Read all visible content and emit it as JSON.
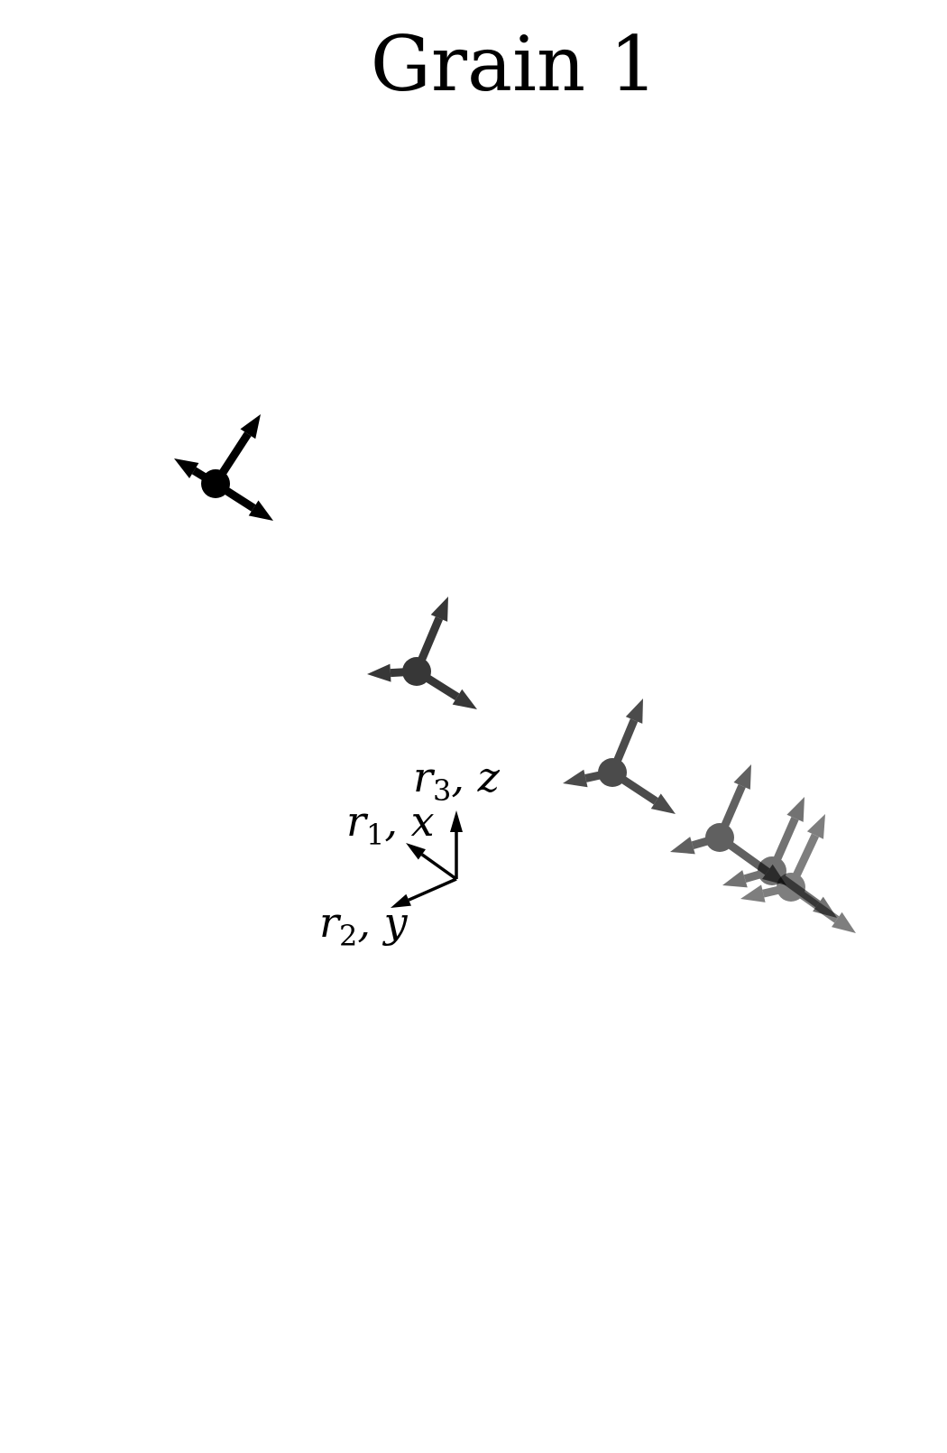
{
  "title": "Grain 1",
  "triad_color": "#000000",
  "triads": [
    {
      "id": "frame-1",
      "opacity": 1.0
    },
    {
      "id": "frame-2",
      "opacity": 0.78
    },
    {
      "id": "frame-3",
      "opacity": 0.7
    },
    {
      "id": "frame-4",
      "opacity": 0.62
    },
    {
      "id": "frame-5",
      "opacity": 0.55
    },
    {
      "id": "frame-6",
      "opacity": 0.5
    }
  ],
  "reference_axes": {
    "labels": [
      {
        "id": "r3-z",
        "main": "r",
        "sub": "3",
        "rest": ", z"
      },
      {
        "id": "r1-x",
        "main": "r",
        "sub": "1",
        "rest": ", x"
      },
      {
        "id": "r2-y",
        "main": "r",
        "sub": "2",
        "rest": ", y"
      }
    ]
  }
}
